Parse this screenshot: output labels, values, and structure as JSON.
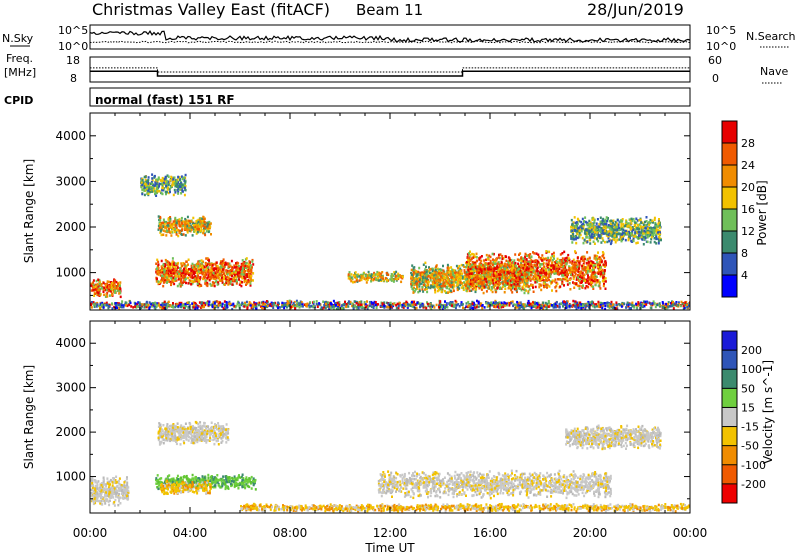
{
  "header": {
    "station": "Christmas Valley East (fitACF)",
    "beam": "Beam 11",
    "date": "28/Jun/2019"
  },
  "strip_labels": {
    "nsky": "N.Sky",
    "nsky_hi": "10^5",
    "nsky_lo": "10^0",
    "nsearch": "N.Search",
    "nsearch_hi": "10^5",
    "nsearch_lo": "10^0",
    "freq_line1": "Freq.",
    "freq_line2": "[MHz]",
    "freq_hi": "18",
    "freq_lo": "8",
    "nave": "Nave",
    "nave_hi": "60",
    "nave_lo": "0",
    "cpid": "CPID",
    "mode": "normal (fast) 151 RF"
  },
  "chart_data": [
    {
      "type": "heatmap",
      "title": "",
      "xlabel": "",
      "ylabel": "Slant Range [km]",
      "x_ticks": [
        "00:00",
        "04:00",
        "08:00",
        "12:00",
        "16:00",
        "20:00",
        "00:00"
      ],
      "y_ticks": [
        1000,
        2000,
        3000,
        4000
      ],
      "xlim_hours": [
        0,
        24
      ],
      "ylim_km": [
        180,
        4500
      ],
      "colorbar": {
        "label": "Power [dB]",
        "ticks": [
          "4",
          "8",
          "12",
          "16",
          "20",
          "24",
          "28"
        ],
        "range": [
          0,
          32
        ],
        "colors": [
          "#0000ff",
          "#2f55b8",
          "#3b8a6e",
          "#6fbf59",
          "#f2c200",
          "#f08c00",
          "#f05a00",
          "#e60000"
        ]
      },
      "echo_regions": [
        {
          "t": [
            0.0,
            1.2
          ],
          "r": [
            380,
            1000
          ],
          "level": "strong"
        },
        {
          "t": [
            2.6,
            6.5
          ],
          "r": [
            550,
            1500
          ],
          "level": "strong"
        },
        {
          "t": [
            2.7,
            4.8
          ],
          "r": [
            1700,
            2400
          ],
          "level": "moderate"
        },
        {
          "t": [
            2.0,
            3.8
          ],
          "r": [
            2600,
            3300
          ],
          "level": "weak"
        },
        {
          "t": [
            10.3,
            12.5
          ],
          "r": [
            750,
            1100
          ],
          "level": "moderate"
        },
        {
          "t": [
            12.8,
            17.5
          ],
          "r": [
            400,
            1400
          ],
          "level": "moderate"
        },
        {
          "t": [
            15.0,
            20.6
          ],
          "r": [
            400,
            1700
          ],
          "level": "strong"
        },
        {
          "t": [
            19.2,
            22.8
          ],
          "r": [
            1500,
            2400
          ],
          "level": "weak"
        },
        {
          "t": [
            0.0,
            24.0
          ],
          "r": [
            180,
            450
          ],
          "level": "ground"
        }
      ]
    },
    {
      "type": "heatmap",
      "title": "",
      "xlabel": "Time UT",
      "ylabel": "Slant Range [km]",
      "x_ticks": [
        "00:00",
        "04:00",
        "08:00",
        "12:00",
        "16:00",
        "20:00",
        "00:00"
      ],
      "y_ticks": [
        1000,
        2000,
        3000,
        4000
      ],
      "xlim_hours": [
        0,
        24
      ],
      "ylim_km": [
        180,
        4500
      ],
      "colorbar": {
        "label": "Velocity [m s^-1]",
        "ticks": [
          "-200",
          "-100",
          "-50",
          "-15",
          "15",
          "50",
          "100",
          "200"
        ],
        "range": [
          -250,
          250
        ],
        "colors": [
          "#ee0000",
          "#f05a00",
          "#f08c00",
          "#f2c200",
          "#c8c8c8",
          "#6fcf3f",
          "#3b8a6e",
          "#2f55b8",
          "#1b1bd8"
        ]
      },
      "echo_regions": [
        {
          "t": [
            0.0,
            1.5
          ],
          "r": [
            200,
            1200
          ],
          "level": "ground-scatter"
        },
        {
          "t": [
            2.6,
            6.6
          ],
          "r": [
            650,
            1150
          ],
          "level": "+50 to +100"
        },
        {
          "t": [
            2.8,
            4.8
          ],
          "r": [
            550,
            1000
          ],
          "level": "-50 to -15"
        },
        {
          "t": [
            2.7,
            5.5
          ],
          "r": [
            1600,
            2400
          ],
          "level": "ground-scatter"
        },
        {
          "t": [
            6.0,
            24.0
          ],
          "r": [
            200,
            450
          ],
          "level": "-50 to -15"
        },
        {
          "t": [
            11.5,
            20.8
          ],
          "r": [
            400,
            1300
          ],
          "level": "ground-scatter"
        },
        {
          "t": [
            19.0,
            22.8
          ],
          "r": [
            1500,
            2300
          ],
          "level": "ground-scatter"
        }
      ]
    }
  ],
  "strip_data": {
    "freq_mhz": [
      {
        "t": [
          0.0,
          2.7
        ],
        "value": 12.3
      },
      {
        "t": [
          2.7,
          14.9
        ],
        "value": 10.4
      },
      {
        "t": [
          14.9,
          24.0
        ],
        "value": 12.3
      }
    ],
    "nave": [
      {
        "t": [
          0.0,
          2.7
        ],
        "value": 34
      },
      {
        "t": [
          2.7,
          14.9
        ],
        "value": 24
      },
      {
        "t": [
          14.9,
          24.0
        ],
        "value": 34
      }
    ]
  }
}
